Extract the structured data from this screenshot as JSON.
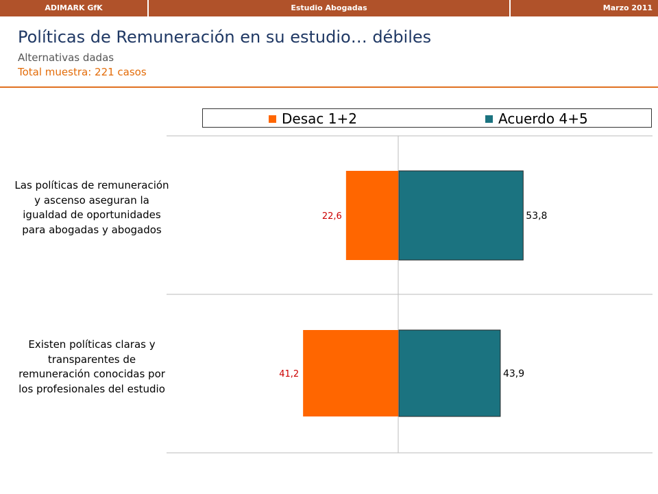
{
  "header": {
    "left": "ADIMARK GfK",
    "center": "Estudio Abogadas",
    "right": "Marzo 2011"
  },
  "title": "Políticas de Remuneración en su estudio… débiles",
  "subtitle": "Alternativas dadas",
  "sample": "Total muestra: 221 casos",
  "colors": {
    "header_bg": "#b0522a",
    "title": "#1f3864",
    "sample": "#e36c09",
    "desac": "#ff6600",
    "acuerdo": "#1b7380",
    "desac_label": "#cc0000"
  },
  "chart_data": {
    "type": "bar",
    "orientation": "horizontal-diverging",
    "categories": [
      "Las políticas de remuneración y ascenso aseguran la igualdad de oportunidades para abogadas y abogados",
      "Existen políticas claras y transparentes de remuneración conocidas por los profesionales del estudio"
    ],
    "series": [
      {
        "name": "Desac 1+2",
        "values": [
          22.6,
          41.2
        ],
        "labels": [
          "22,6",
          "41,2"
        ],
        "color": "#ff6600",
        "direction": "left"
      },
      {
        "name": "Acuerdo 4+5",
        "values": [
          53.8,
          43.9
        ],
        "labels": [
          "53,8",
          "43,9"
        ],
        "color": "#1b7380",
        "direction": "right"
      }
    ],
    "legend_position": "top",
    "grid": false
  }
}
